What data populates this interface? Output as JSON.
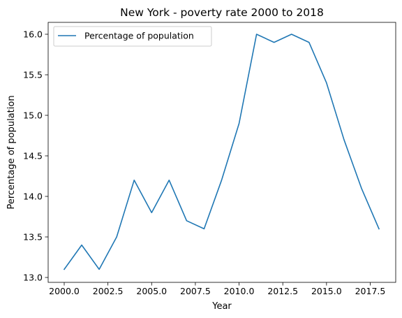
{
  "chart_data": {
    "type": "line",
    "title": "New York - poverty rate 2000 to 2018",
    "xlabel": "Year",
    "ylabel": "Percentage of population",
    "xlim": [
      2000,
      2018
    ],
    "ylim": [
      13.0,
      16.0
    ],
    "x_ticks": [
      2000.0,
      2002.5,
      2005.0,
      2007.5,
      2010.0,
      2012.5,
      2015.0,
      2017.5
    ],
    "x_tick_labels": [
      "2000.0",
      "2002.5",
      "2005.0",
      "2007.5",
      "2010.0",
      "2012.5",
      "2015.0",
      "2017.5"
    ],
    "y_ticks": [
      13.0,
      13.5,
      14.0,
      14.5,
      15.0,
      15.5,
      16.0
    ],
    "y_tick_labels": [
      "13.0",
      "13.5",
      "14.0",
      "14.5",
      "15.0",
      "15.5",
      "16.0"
    ],
    "legend_position": "top-left",
    "grid": false,
    "series": [
      {
        "name": "Percentage of population",
        "color": "#1f77b4",
        "x": [
          2000,
          2001,
          2002,
          2003,
          2004,
          2005,
          2006,
          2007,
          2008,
          2009,
          2010,
          2011,
          2012,
          2013,
          2014,
          2015,
          2016,
          2017,
          2018
        ],
        "y": [
          13.1,
          13.4,
          13.1,
          13.5,
          14.2,
          13.8,
          14.2,
          13.7,
          13.6,
          14.2,
          14.9,
          16.0,
          15.9,
          16.0,
          15.9,
          15.4,
          14.7,
          14.1,
          13.6
        ]
      }
    ]
  }
}
